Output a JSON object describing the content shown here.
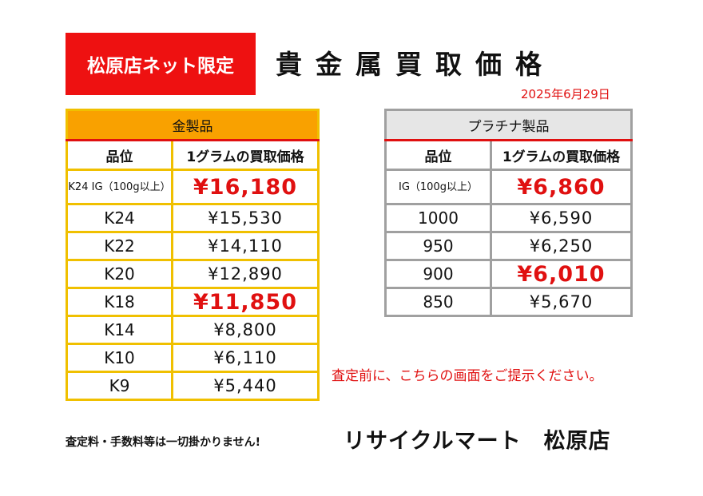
{
  "badge": "松原店ネット限定",
  "title": "貴金属買取価格",
  "date": "2025年6月29日",
  "gold": {
    "header": "金製品",
    "col_grade": "品位",
    "col_price": "1グラムの買取価格",
    "rows": [
      {
        "grade": "K24 IG（100g以上）",
        "price": "¥16,180",
        "highlight": true
      },
      {
        "grade": "K24",
        "price": "¥15,530",
        "highlight": false
      },
      {
        "grade": "K22",
        "price": "¥14,110",
        "highlight": false
      },
      {
        "grade": "K20",
        "price": "¥12,890",
        "highlight": false
      },
      {
        "grade": "K18",
        "price": "¥11,850",
        "highlight": true
      },
      {
        "grade": "K14",
        "price": "¥8,800",
        "highlight": false
      },
      {
        "grade": "K10",
        "price": "¥6,110",
        "highlight": false
      },
      {
        "grade": "K9",
        "price": "¥5,440",
        "highlight": false
      }
    ]
  },
  "platinum": {
    "header": "プラチナ製品",
    "col_grade": "品位",
    "col_price": "1グラムの買取価格",
    "rows": [
      {
        "grade": "IG（100g以上）",
        "price": "¥6,860",
        "highlight": true
      },
      {
        "grade": "1000",
        "price": "¥6,590",
        "highlight": false
      },
      {
        "grade": "950",
        "price": "¥6,250",
        "highlight": false
      },
      {
        "grade": "900",
        "price": "¥6,010",
        "highlight": true
      },
      {
        "grade": "850",
        "price": "¥5,670",
        "highlight": false
      }
    ]
  },
  "notice": "査定前に、こちらの画面をご提示ください。",
  "fee_note": "査定料・手数料等は一切掛かりません!",
  "store_name": "リサイクルマート　松原店",
  "colors": {
    "accent_red": "#e01010",
    "gold_header": "#f9a100",
    "gold_border": "#f0c000",
    "platinum_header": "#e6e6e6",
    "platinum_border": "#a0a0a0"
  }
}
